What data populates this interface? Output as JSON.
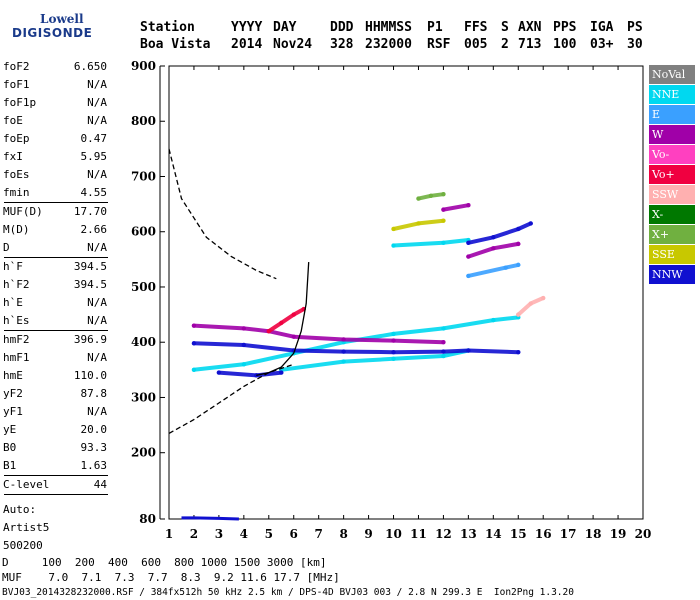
{
  "logo": {
    "line1": "Lowell",
    "line2": "DIGISONDE"
  },
  "header": {
    "labels": [
      "Station",
      "YYYY",
      "DAY",
      "DDD",
      "HHMMSS",
      "P1",
      "FFS",
      "S",
      "AXN",
      "PPS",
      "IGA",
      "PS"
    ],
    "values": [
      "Boa Vista",
      "2014",
      "Nov24",
      "328",
      "232000",
      "RSF",
      "005",
      "2",
      "713",
      "100",
      "03+",
      "30"
    ]
  },
  "params": [
    {
      "items": [
        [
          "foF2",
          "6.650"
        ],
        [
          "foF1",
          "N/A"
        ],
        [
          "foF1p",
          "N/A"
        ],
        [
          "foE",
          "N/A"
        ],
        [
          "foEp",
          "0.47"
        ],
        [
          "fxI",
          "5.95"
        ],
        [
          "foEs",
          "N/A"
        ],
        [
          "fmin",
          "4.55"
        ]
      ]
    },
    {
      "items": [
        [
          "MUF(D)",
          "17.70"
        ],
        [
          "M(D)",
          "2.66"
        ],
        [
          "D",
          "N/A"
        ]
      ]
    },
    {
      "items": [
        [
          "h`F",
          "394.5"
        ],
        [
          "h`F2",
          "394.5"
        ],
        [
          "h`E",
          "N/A"
        ],
        [
          "h`Es",
          "N/A"
        ]
      ]
    },
    {
      "items": [
        [
          "hmF2",
          "396.9"
        ],
        [
          "hmF1",
          "N/A"
        ],
        [
          "hmE",
          "110.0"
        ],
        [
          "yF2",
          "87.8"
        ],
        [
          "yF1",
          "N/A"
        ],
        [
          "yE",
          "20.0"
        ],
        [
          "B0",
          "93.3"
        ],
        [
          "B1",
          "1.63"
        ]
      ]
    },
    {
      "items": [
        [
          "C-level",
          "44"
        ]
      ]
    }
  ],
  "autoscale": [
    "Auto:",
    "Artist5",
    "500200"
  ],
  "legend": [
    {
      "label": "NoVal",
      "color": "#808080"
    },
    {
      "label": "NNE",
      "color": "#00d8f0"
    },
    {
      "label": "E",
      "color": "#3aa0ff"
    },
    {
      "label": "W",
      "color": "#a000a8"
    },
    {
      "label": "Vo-",
      "color": "#ff40c0"
    },
    {
      "label": "Vo+",
      "color": "#f00040"
    },
    {
      "label": "SSW",
      "color": "#ffb0b0"
    },
    {
      "label": "X-",
      "color": "#007800"
    },
    {
      "label": "X+",
      "color": "#70b040"
    },
    {
      "label": "SSE",
      "color": "#c8c800"
    },
    {
      "label": "NNW",
      "color": "#1010d0"
    }
  ],
  "footer": {
    "d_line": "D     100  200  400  600  800 1000 1500 3000 [km]",
    "muf_line": "MUF    7.0  7.1  7.3  7.7  8.3  9.2 11.6 17.7 [MHz]",
    "file_line": "BVJ03_2014328232000.RSF / 384fx512h 50 kHz 2.5 km / DPS-4D BVJ03 003 / 2.8 N 299.3 E  Ion2Png 1.3.20"
  },
  "chart_data": {
    "type": "scatter",
    "title": "",
    "xlabel": "",
    "ylabel": "",
    "xlim": [
      1,
      20
    ],
    "ylim": [
      80,
      900
    ],
    "xticks": [
      1,
      2,
      3,
      4,
      5,
      6,
      7,
      8,
      9,
      10,
      11,
      12,
      13,
      14,
      15,
      16,
      17,
      18,
      19,
      20
    ],
    "yticks": [
      80,
      200,
      300,
      400,
      500,
      600,
      700,
      800,
      900
    ],
    "traces": [
      {
        "name": "NNE",
        "color": "#00d8f0",
        "points": [
          [
            2,
            350
          ],
          [
            4,
            360
          ],
          [
            6,
            380
          ],
          [
            8,
            400
          ],
          [
            10,
            415
          ],
          [
            12,
            425
          ],
          [
            14,
            440
          ],
          [
            15,
            445
          ]
        ]
      },
      {
        "name": "NNE",
        "color": "#00d8f0",
        "points": [
          [
            5.5,
            350
          ],
          [
            8,
            365
          ],
          [
            10,
            370
          ],
          [
            12,
            375
          ],
          [
            13,
            385
          ]
        ]
      },
      {
        "name": "NNE",
        "color": "#00d8f0",
        "points": [
          [
            10,
            575
          ],
          [
            12,
            580
          ],
          [
            13,
            585
          ]
        ]
      },
      {
        "name": "E",
        "color": "#3aa0ff",
        "points": [
          [
            13,
            520
          ],
          [
            14.5,
            535
          ],
          [
            15,
            540
          ]
        ]
      },
      {
        "name": "NNW",
        "color": "#1010d0",
        "points": [
          [
            2,
            398
          ],
          [
            4,
            395
          ],
          [
            6,
            385
          ],
          [
            8,
            383
          ],
          [
            10,
            382
          ],
          [
            12,
            383
          ],
          [
            13,
            385
          ],
          [
            15,
            382
          ]
        ]
      },
      {
        "name": "NNW",
        "color": "#1010d0",
        "points": [
          [
            3,
            345
          ],
          [
            4.5,
            340
          ],
          [
            5.5,
            345
          ]
        ]
      },
      {
        "name": "NNW",
        "color": "#1010d0",
        "points": [
          [
            13,
            580
          ],
          [
            14,
            590
          ],
          [
            15,
            605
          ],
          [
            15.5,
            615
          ]
        ]
      },
      {
        "name": "W",
        "color": "#a000a8",
        "points": [
          [
            2,
            430
          ],
          [
            4,
            425
          ],
          [
            5,
            420
          ],
          [
            6,
            410
          ],
          [
            8,
            405
          ],
          [
            10,
            403
          ],
          [
            12,
            400
          ]
        ]
      },
      {
        "name": "W",
        "color": "#a000a8",
        "points": [
          [
            12,
            640
          ],
          [
            13,
            648
          ]
        ]
      },
      {
        "name": "W",
        "color": "#a000a8",
        "points": [
          [
            13,
            555
          ],
          [
            14,
            570
          ],
          [
            15,
            578
          ]
        ]
      },
      {
        "name": "Vo+",
        "color": "#f00040",
        "points": [
          [
            5,
            420
          ],
          [
            5.5,
            435
          ],
          [
            6,
            450
          ],
          [
            6.4,
            460
          ]
        ]
      },
      {
        "name": "SSE",
        "color": "#c8c800",
        "points": [
          [
            10,
            605
          ],
          [
            11,
            615
          ],
          [
            12,
            620
          ]
        ]
      },
      {
        "name": "X+",
        "color": "#70b040",
        "points": [
          [
            11,
            660
          ],
          [
            11.5,
            665
          ],
          [
            12,
            668
          ]
        ]
      },
      {
        "name": "SSW",
        "color": "#ffb0b0",
        "points": [
          [
            15,
            450
          ],
          [
            15.5,
            470
          ],
          [
            16,
            480
          ]
        ]
      }
    ],
    "virtual_height_curve": {
      "color": "#000000",
      "points": [
        [
          4.5,
          340
        ],
        [
          5,
          345
        ],
        [
          5.5,
          355
        ],
        [
          6,
          380
        ],
        [
          6.3,
          420
        ],
        [
          6.5,
          470
        ],
        [
          6.6,
          545
        ]
      ]
    },
    "profile_curve": {
      "color": "#000000",
      "dash": true,
      "points": [
        [
          1,
          750
        ],
        [
          1.5,
          660
        ],
        [
          2.5,
          590
        ],
        [
          3.5,
          555
        ],
        [
          4.5,
          530
        ],
        [
          5.3,
          515
        ]
      ]
    },
    "profile_curve_lower": {
      "color": "#000000",
      "dash": true,
      "points": [
        [
          1,
          235
        ],
        [
          2,
          260
        ],
        [
          3,
          290
        ],
        [
          4,
          320
        ],
        [
          5,
          345
        ],
        [
          6,
          360
        ]
      ]
    },
    "bottom_trace": {
      "color": "#1010d0",
      "points": [
        [
          1.5,
          82
        ],
        [
          2,
          82
        ],
        [
          3,
          81
        ],
        [
          3.8,
          80
        ]
      ]
    }
  }
}
